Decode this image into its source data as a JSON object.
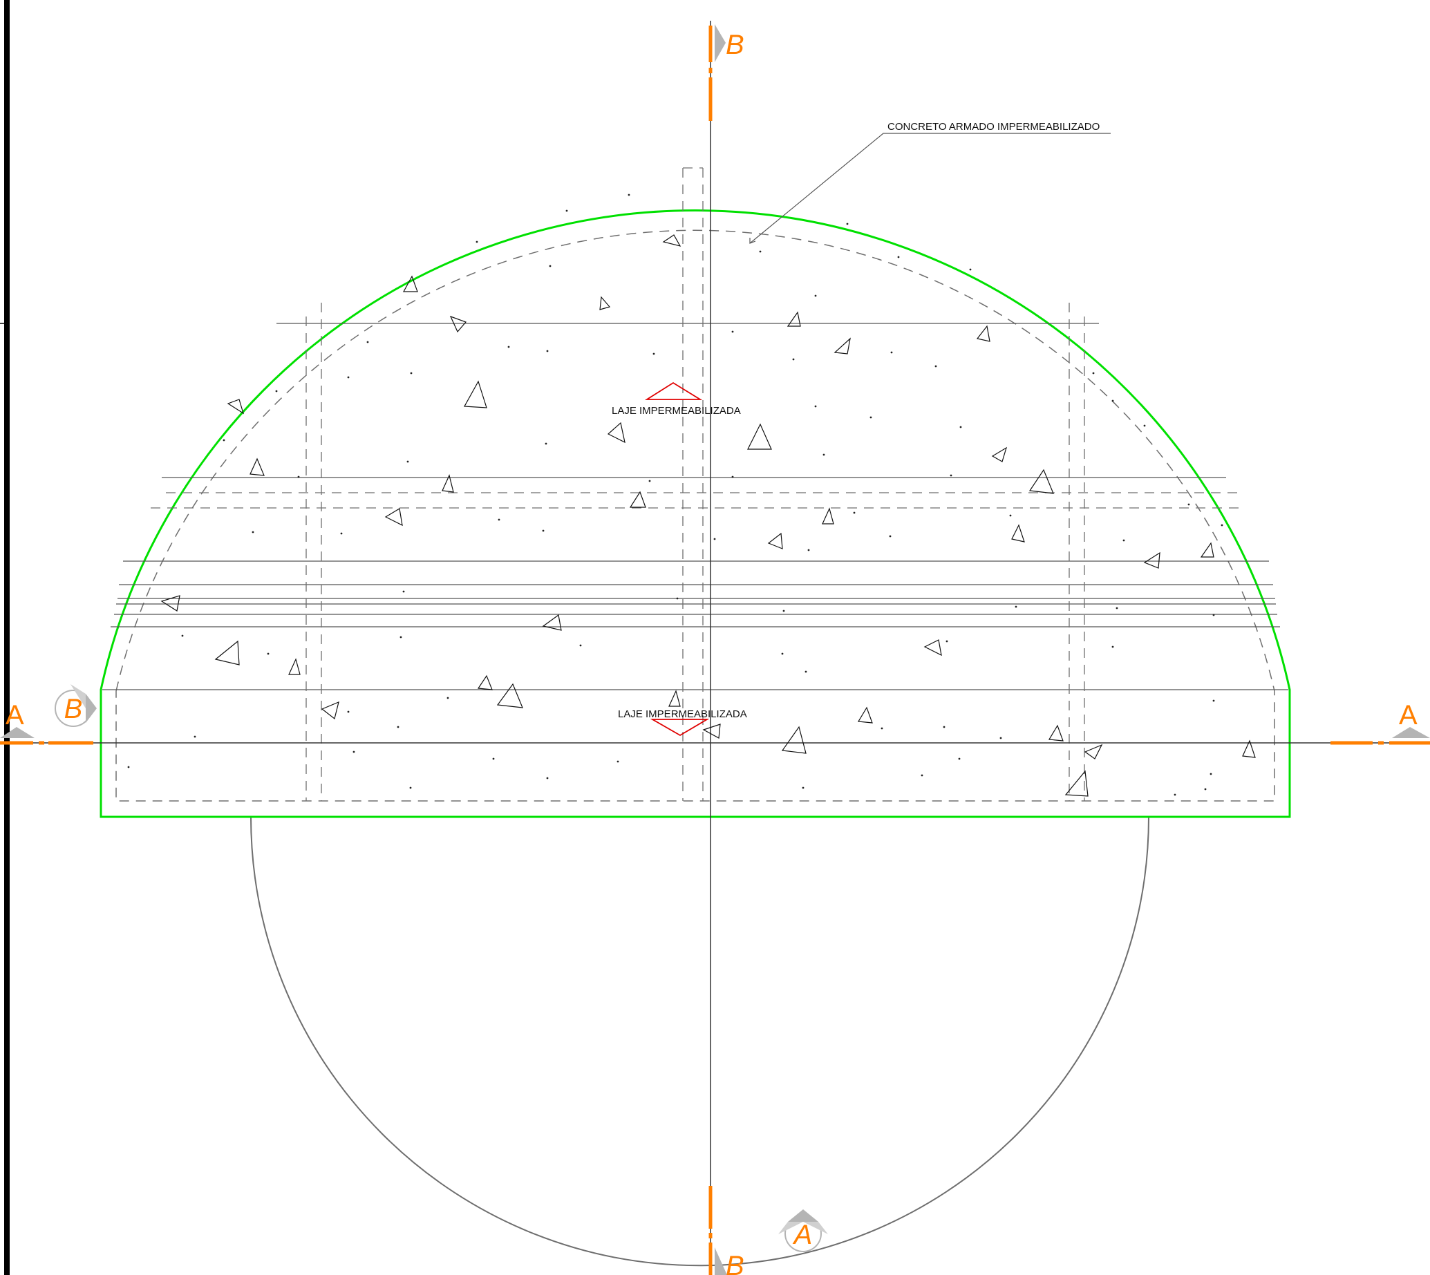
{
  "notes": {
    "concrete": "CONCRETO ARMADO IMPERMEABILIZADO",
    "slab_upper": "LAJE IMPERMEABILIZADA",
    "slab_lower": "LAJE IMPERMEABILIZADA"
  },
  "section_marks": {
    "b_top": "B",
    "b_bottom": "B",
    "b_left": "B",
    "a_left": "A",
    "a_right": "A",
    "a_bottom": "A"
  },
  "colors": {
    "outline": "#00e000",
    "section_line": "#ff7f00",
    "section_mark_text": "#ff7f00",
    "section_triangle": "#b4b4b4",
    "level_marker": "#e00000",
    "linework": "#333333",
    "frame": "#000000"
  }
}
